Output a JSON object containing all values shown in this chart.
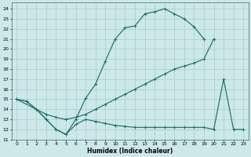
{
  "xlabel": "Humidex (Indice chaleur)",
  "bg_color": "#cce8e8",
  "grid_color": "#aacccc",
  "line_color": "#1a7070",
  "xlim": [
    -0.5,
    23.5
  ],
  "ylim": [
    11,
    24.6
  ],
  "xticks": [
    0,
    1,
    2,
    3,
    4,
    5,
    6,
    7,
    8,
    9,
    10,
    11,
    12,
    13,
    14,
    15,
    16,
    17,
    18,
    19,
    20,
    21,
    22,
    23
  ],
  "yticks": [
    11,
    12,
    13,
    14,
    15,
    16,
    17,
    18,
    19,
    20,
    21,
    22,
    23,
    24
  ],
  "top_x": [
    0,
    1,
    2,
    3,
    4,
    5,
    6,
    7,
    8,
    9,
    10,
    11,
    12,
    13,
    14,
    15,
    16,
    17,
    18,
    19
  ],
  "top_y": [
    15,
    14.8,
    14,
    13,
    12,
    11.5,
    13,
    15.1,
    16.5,
    18.8,
    21,
    22.1,
    22.3,
    23.5,
    23.7,
    24,
    23.5,
    23,
    22.2,
    21
  ],
  "mid_x": [
    0,
    2,
    3,
    4,
    5,
    6,
    7,
    8,
    9,
    10,
    11,
    12,
    13,
    14,
    15,
    16,
    17,
    18,
    19,
    20
  ],
  "mid_y": [
    15,
    14,
    13.5,
    13.2,
    13,
    13.2,
    13.5,
    14,
    14.5,
    15,
    15.5,
    16,
    16.5,
    17,
    17.5,
    18,
    18.3,
    18.6,
    19,
    21
  ],
  "bot_x": [
    0,
    1,
    2,
    3,
    4,
    5,
    6,
    7,
    8,
    9,
    10,
    11,
    12,
    13,
    14,
    15,
    16,
    17,
    18,
    19,
    20,
    21,
    22,
    23
  ],
  "bot_y": [
    15,
    14.8,
    14,
    13,
    12,
    11.5,
    12.5,
    13,
    12.8,
    12.6,
    12.4,
    12.3,
    12.2,
    12.2,
    12.2,
    12.2,
    12.2,
    12.2,
    12.2,
    12.2,
    12,
    17,
    12,
    12
  ]
}
